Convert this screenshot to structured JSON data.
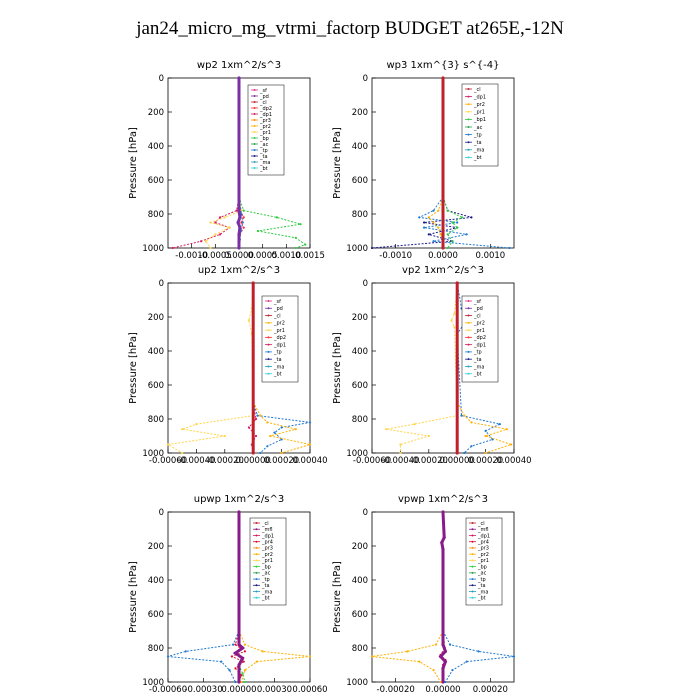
{
  "title": "jan24_micro_mg_vtrmi_factorp  BUDGET at265E,-12N",
  "colors": {
    "sf": "#e0308a",
    "pd": "#7b2fa6",
    "cl": "#c0202a",
    "dp2": "#ff2a2a",
    "dp1": "#d81b60",
    "pr3": "#ff8c00",
    "pr2": "#ffb000",
    "pr1": "#ffd54a",
    "bp": "#2ecc40",
    "ac": "#2aa24a",
    "tp": "#1f78d1",
    "ta": "#1a1a8a",
    "ma": "#23a0c0",
    "bt": "#30d0e0",
    "mfl": "#8a1a8a",
    "pr4": "#e0102a"
  },
  "chart_data": [
    {
      "type": "line",
      "title": "wp2  1xm^2/s^3",
      "ylabel": "Pressure [hPa]",
      "ylim": [
        1000,
        0
      ],
      "xlim": [
        -0.0015,
        0.0015
      ],
      "xticks": [
        "-0.0010",
        "-0.0005",
        "0.0000",
        "0.0005",
        "0.0010",
        "0.0015"
      ],
      "xtick_values": [
        -0.001,
        -0.0005,
        0.0,
        0.0005,
        0.001,
        0.0015
      ],
      "yticks": [
        0,
        200,
        400,
        600,
        800,
        1000
      ],
      "legend": [
        "_sf",
        "_pd",
        "_cl",
        "_dp2",
        "_dp1",
        "_pr3",
        "_pr2",
        "_pr1",
        "_bp",
        "_ac",
        "_tp",
        "_ta",
        "_ma",
        "_bt"
      ],
      "series": [
        {
          "key": "pd",
          "dominant": true,
          "pressure": [
            0,
            700,
            780,
            820,
            850,
            880,
            920,
            960,
            1000
          ],
          "values": [
            0,
            0,
            0,
            2e-05,
            -2e-05,
            2e-05,
            0,
            0,
            0
          ]
        },
        {
          "key": "dp1",
          "pressure": [
            700,
            780,
            820,
            850,
            880,
            920,
            960,
            1000
          ],
          "values": [
            0,
            -5e-05,
            -0.0004,
            -0.0005,
            -0.0002,
            -0.0004,
            -0.0008,
            -0.0014
          ]
        },
        {
          "key": "dp2",
          "pressure": [
            700,
            780,
            820,
            850,
            880,
            920,
            960,
            1000
          ],
          "values": [
            0,
            3e-05,
            0.0001,
            5e-05,
            0.0001,
            2e-05,
            0,
            0
          ]
        },
        {
          "key": "pr1",
          "pressure": [
            700,
            780,
            820,
            850,
            880,
            920,
            960,
            1000
          ],
          "values": [
            0,
            5e-05,
            -0.0003,
            -0.0006,
            -0.0002,
            -0.0005,
            -0.0007,
            -0.0006
          ]
        },
        {
          "key": "bp",
          "pressure": [
            700,
            780,
            820,
            860,
            900,
            940,
            980,
            1000
          ],
          "values": [
            0,
            0.0001,
            0.0008,
            0.0013,
            0.0004,
            0.0012,
            0.0014,
            0.0012
          ]
        },
        {
          "key": "tp",
          "pressure": [
            700,
            800,
            850,
            900,
            950,
            1000
          ],
          "values": [
            0,
            5e-05,
            8e-05,
            4e-05,
            2e-05,
            0
          ]
        }
      ]
    },
    {
      "type": "line",
      "title": "wp3  1xm^{3} s^{-4}",
      "ylabel": "Pressure [hPa]",
      "ylim": [
        1000,
        0
      ],
      "xlim": [
        -0.0015,
        0.0015
      ],
      "xticks": [
        "-0.0010",
        "0.0000",
        "0.0010"
      ],
      "xtick_values": [
        -0.001,
        0.0,
        0.001
      ],
      "yticks": [
        0,
        200,
        400,
        600,
        800,
        1000
      ],
      "legend": [
        "_cl",
        "_dp1",
        "_pr2",
        "_pr1",
        "_bp1",
        "_ac",
        "_tp",
        "_ta",
        "_ma",
        "_bt"
      ],
      "series": [
        {
          "key": "cl",
          "dominant": true,
          "pressure": [
            0,
            1000
          ],
          "values": [
            0,
            0
          ]
        },
        {
          "key": "ta",
          "pressure": [
            700,
            780,
            820,
            850,
            880,
            920,
            960,
            1000
          ],
          "values": [
            0,
            0.0001,
            0.0006,
            -0.0004,
            0.0003,
            -0.0003,
            0.0002,
            -0.0015
          ]
        },
        {
          "key": "tp",
          "pressure": [
            700,
            780,
            820,
            850,
            880,
            920,
            960,
            1000
          ],
          "values": [
            0,
            -0.0002,
            -0.0005,
            0.0003,
            -0.0004,
            0.0005,
            -0.0002,
            0.0014
          ]
        },
        {
          "key": "bp",
          "pressure": [
            700,
            780,
            820,
            850,
            880,
            920,
            960,
            1000
          ],
          "values": [
            0,
            0.0001,
            0.0004,
            0.0002,
            0.0003,
            0.0001,
            0.0002,
            0.0001
          ]
        },
        {
          "key": "pr2",
          "pressure": [
            700,
            780,
            820,
            850,
            880,
            920,
            960,
            1000
          ],
          "values": [
            0,
            -0.0001,
            -0.0003,
            -0.0002,
            -0.0001,
            -5e-05,
            0,
            0
          ]
        }
      ]
    },
    {
      "type": "line",
      "title": "up2  1xm^2/s^3",
      "ylabel": "Pressure [hPa]",
      "ylim": [
        1000,
        0
      ],
      "xlim": [
        -0.0006,
        0.0004
      ],
      "xticks": [
        "-0.00060",
        "-0.00040",
        "-0.00020",
        "0.00000",
        "0.00020",
        "0.00040"
      ],
      "xtick_values": [
        -0.0006,
        -0.0004,
        -0.0002,
        0.0,
        0.0002,
        0.0004
      ],
      "yticks": [
        0,
        200,
        400,
        600,
        800,
        1000
      ],
      "legend": [
        "_sf",
        "_pd",
        "_cl",
        "_pr2",
        "_pr1",
        "_dp2",
        "_dp1",
        "_tp",
        "_ta",
        "_ma",
        "_bt"
      ],
      "series": [
        {
          "key": "cl",
          "dominant": true,
          "pressure": [
            0,
            1000
          ],
          "values": [
            0,
            0
          ]
        },
        {
          "key": "pr1",
          "pressure": [
            0,
            150,
            220,
            300,
            780,
            830,
            860,
            900,
            950,
            1000
          ],
          "values": [
            0,
            -1e-05,
            -3e-05,
            -1e-05,
            0,
            -0.0004,
            -0.0005,
            -0.0002,
            -0.0006,
            -0.0005
          ]
        },
        {
          "key": "tp",
          "pressure": [
            700,
            780,
            820,
            850,
            880,
            920,
            960,
            1000
          ],
          "values": [
            0,
            3e-05,
            0.0004,
            0.0002,
            0.00015,
            0.0002,
            0.0001,
            5e-05
          ]
        },
        {
          "key": "pr2",
          "pressure": [
            700,
            780,
            820,
            860,
            900,
            950,
            1000
          ],
          "values": [
            0,
            5e-05,
            0.0001,
            0.0003,
            0.00012,
            0.0004,
            0.0002
          ]
        },
        {
          "key": "dp1",
          "pressure": [
            700,
            800,
            850,
            900,
            950,
            1000
          ],
          "values": [
            0,
            2e-05,
            -3e-05,
            2e-05,
            -1e-05,
            0
          ]
        }
      ]
    },
    {
      "type": "line",
      "title": "vp2  1xm^2/s^3",
      "ylabel": "Pressure [hPa]",
      "ylim": [
        1000,
        0
      ],
      "xlim": [
        -0.0006,
        0.0004
      ],
      "xticks": [
        "-0.00060",
        "-0.00040",
        "-0.00020",
        "0.00000",
        "0.00020",
        "0.00040"
      ],
      "xtick_values": [
        -0.0006,
        -0.0004,
        -0.0002,
        0.0,
        0.0002,
        0.0004
      ],
      "yticks": [
        0,
        200,
        400,
        600,
        800,
        1000
      ],
      "legend": [
        "_sf",
        "_pd",
        "_cl",
        "_pr2",
        "_pr1",
        "_dp2",
        "_dp1",
        "_tp",
        "_ta",
        "_ma",
        "_bt"
      ],
      "series": [
        {
          "key": "cl",
          "dominant": true,
          "pressure": [
            0,
            1000
          ],
          "values": [
            0,
            0
          ]
        },
        {
          "key": "tp",
          "pressure": [
            0,
            150,
            200,
            250,
            300,
            780,
            830,
            870,
            920,
            960,
            1000
          ],
          "values": [
            0,
            3e-05,
            8e-05,
            4e-05,
            0,
            3e-05,
            0.0003,
            0.0002,
            0.00025,
            0.0001,
            5e-05
          ]
        },
        {
          "key": "pr1",
          "pressure": [
            0,
            180,
            220,
            260,
            780,
            830,
            860,
            900,
            950,
            1000
          ],
          "values": [
            0,
            -2e-05,
            -4e-05,
            -2e-05,
            0,
            -0.0003,
            -0.0005,
            -0.0002,
            -0.0004,
            -0.0004
          ]
        },
        {
          "key": "pr2",
          "pressure": [
            700,
            780,
            820,
            860,
            900,
            950,
            1000
          ],
          "values": [
            0,
            5e-05,
            0.0001,
            0.00035,
            0.0002,
            0.00038,
            0.0002
          ]
        }
      ]
    },
    {
      "type": "line",
      "title": "upwp  1xm^2/s^3",
      "ylabel": "Pressure [hPa]",
      "ylim": [
        1000,
        0
      ],
      "xlim": [
        -0.0006,
        0.0006
      ],
      "xticks": [
        "-0.00060",
        "-0.00030",
        "0.00000",
        "0.00030",
        "0.00060"
      ],
      "xtick_values": [
        -0.0006,
        -0.0003,
        0.0,
        0.0003,
        0.0006
      ],
      "yticks": [
        0,
        200,
        400,
        600,
        800,
        1000
      ],
      "legend": [
        "_cl",
        "_mfl",
        "_dp1",
        "_pr4",
        "_pr3",
        "_pr2",
        "_pr1",
        "_bp",
        "_ac",
        "_tp",
        "_ta",
        "_ma",
        "_bt"
      ],
      "series": [
        {
          "key": "mfl",
          "dominant": true,
          "pressure": [
            0,
            780,
            800,
            830,
            860,
            900,
            1000
          ],
          "values": [
            0,
            0,
            3e-05,
            -3e-05,
            3e-05,
            0,
            0
          ]
        },
        {
          "key": "pr4",
          "pressure": [
            700,
            780,
            820,
            850,
            880,
            920,
            960,
            1000
          ],
          "values": [
            0,
            -3e-05,
            5e-05,
            -6e-05,
            4e-05,
            -3e-05,
            2e-05,
            0
          ]
        },
        {
          "key": "tp",
          "pressure": [
            700,
            780,
            820,
            850,
            880,
            930,
            1000
          ],
          "values": [
            0,
            -5e-05,
            -0.00045,
            -0.0006,
            -0.00015,
            -8e-05,
            -3e-05
          ]
        },
        {
          "key": "pr2",
          "pressure": [
            700,
            780,
            820,
            850,
            880,
            930,
            1000
          ],
          "values": [
            0,
            5e-05,
            0.0002,
            0.0006,
            0.00015,
            5e-05,
            2e-05
          ]
        },
        {
          "key": "bp",
          "pressure": [
            900,
            950,
            1000
          ],
          "values": [
            0,
            3e-05,
            5e-05
          ]
        }
      ]
    },
    {
      "type": "line",
      "title": "vpwp  1xm^2/s^3",
      "ylabel": "Pressure [hPa]",
      "ylim": [
        1000,
        0
      ],
      "xlim": [
        -0.0003,
        0.0003
      ],
      "xticks": [
        "-0.00020",
        "0.00000",
        "0.00020"
      ],
      "xtick_values": [
        -0.0002,
        0.0,
        0.0002
      ],
      "yticks": [
        0,
        200,
        400,
        600,
        800,
        1000
      ],
      "legend": [
        "_cl",
        "_mfl",
        "_dp1",
        "_pr4",
        "_pr3",
        "_pr2",
        "_pr1",
        "_bp",
        "_ac",
        "_tp",
        "_ta",
        "_ma",
        "_bt"
      ],
      "series": [
        {
          "key": "mfl",
          "dominant": true,
          "pressure": [
            0,
            150,
            180,
            220,
            780,
            820,
            850,
            880,
            920,
            1000
          ],
          "values": [
            0,
            5e-06,
            -5e-06,
            0,
            0,
            1e-05,
            -1e-05,
            1e-05,
            0,
            0
          ]
        },
        {
          "key": "pr4",
          "pressure": [
            700,
            800,
            840,
            870,
            900,
            1000
          ],
          "values": [
            0,
            8e-06,
            -1e-05,
            1e-05,
            0,
            0
          ]
        },
        {
          "key": "tp",
          "pressure": [
            700,
            780,
            820,
            850,
            880,
            930,
            1000
          ],
          "values": [
            0,
            3e-05,
            0.00015,
            0.0003,
            0.0001,
            4e-05,
            1e-05
          ]
        },
        {
          "key": "pr2",
          "pressure": [
            700,
            780,
            820,
            850,
            880,
            930,
            1000
          ],
          "values": [
            0,
            -3e-05,
            -0.00015,
            -0.0003,
            -0.0001,
            -4e-05,
            -1e-05
          ]
        }
      ]
    }
  ]
}
